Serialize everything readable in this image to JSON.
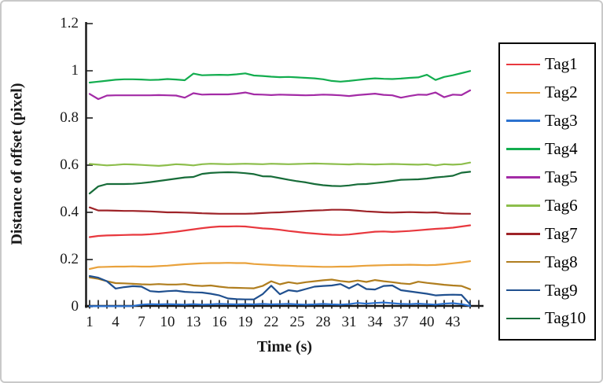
{
  "figure": {
    "background": "#ffffff",
    "frame_border_color": "#c9c9c9",
    "axis_color": "#1a1a1a",
    "text_color": "#1a1a1a",
    "legend_border_color": "#000000"
  },
  "chart_data": {
    "type": "line",
    "title": "",
    "xlabel": "Time (s)",
    "ylabel": "Distance of offset (pixel)",
    "grid": false,
    "legend_position": "right",
    "xlim": [
      0,
      46
    ],
    "ylim": [
      0,
      1.2
    ],
    "x": [
      1,
      2,
      3,
      4,
      5,
      6,
      7,
      8,
      9,
      10,
      11,
      12,
      13,
      14,
      15,
      16,
      17,
      18,
      19,
      20,
      21,
      22,
      23,
      24,
      25,
      26,
      27,
      28,
      29,
      30,
      31,
      32,
      33,
      34,
      35,
      36,
      37,
      38,
      39,
      40,
      41,
      42,
      43,
      44,
      45
    ],
    "x_tick_labels": [
      1,
      4,
      7,
      10,
      13,
      16,
      19,
      22,
      25,
      28,
      31,
      34,
      37,
      40,
      43
    ],
    "y_ticks": [
      0,
      0.2,
      0.4,
      0.6,
      0.8,
      1,
      1.2
    ],
    "y_tick_labels": [
      "0",
      "0.2",
      "0.4",
      "0.6",
      "0.8",
      "1",
      "1.2"
    ],
    "series": [
      {
        "name": "Tag1",
        "color": "#E8383E",
        "values": [
          0.295,
          0.3,
          0.302,
          0.303,
          0.304,
          0.305,
          0.305,
          0.307,
          0.31,
          0.314,
          0.318,
          0.323,
          0.328,
          0.333,
          0.337,
          0.34,
          0.34,
          0.341,
          0.34,
          0.336,
          0.332,
          0.33,
          0.326,
          0.321,
          0.317,
          0.313,
          0.31,
          0.307,
          0.305,
          0.304,
          0.306,
          0.31,
          0.314,
          0.318,
          0.319,
          0.317,
          0.319,
          0.321,
          0.324,
          0.327,
          0.33,
          0.332,
          0.335,
          0.34,
          0.345
        ]
      },
      {
        "name": "Tag2",
        "color": "#E9A23C",
        "values": [
          0.16,
          0.168,
          0.169,
          0.17,
          0.17,
          0.171,
          0.17,
          0.17,
          0.172,
          0.174,
          0.177,
          0.18,
          0.182,
          0.184,
          0.185,
          0.185,
          0.186,
          0.185,
          0.185,
          0.181,
          0.179,
          0.177,
          0.175,
          0.174,
          0.172,
          0.171,
          0.17,
          0.169,
          0.169,
          0.17,
          0.17,
          0.172,
          0.174,
          0.175,
          0.176,
          0.177,
          0.177,
          0.178,
          0.177,
          0.176,
          0.177,
          0.18,
          0.184,
          0.188,
          0.193
        ]
      },
      {
        "name": "Tag3",
        "color": "#2C72CF",
        "values": [
          0.002,
          0.002,
          0.002,
          0.002,
          0.002,
          0.003,
          0.009,
          0.011,
          0.01,
          0.011,
          0.01,
          0.009,
          0.011,
          0.009,
          0.01,
          0.012,
          0.011,
          0.01,
          0.011,
          0.01,
          0.012,
          0.01,
          0.011,
          0.012,
          0.01,
          0.009,
          0.01,
          0.012,
          0.01,
          0.009,
          0.011,
          0.016,
          0.013,
          0.016,
          0.018,
          0.015,
          0.012,
          0.011,
          0.013,
          0.011,
          0.009,
          0.013,
          0.015,
          0.011,
          0.003
        ]
      },
      {
        "name": "Tag4",
        "color": "#13AD4F",
        "values": [
          0.95,
          0.954,
          0.958,
          0.962,
          0.964,
          0.964,
          0.963,
          0.961,
          0.962,
          0.965,
          0.963,
          0.96,
          0.988,
          0.981,
          0.982,
          0.983,
          0.982,
          0.985,
          0.989,
          0.98,
          0.978,
          0.975,
          0.973,
          0.974,
          0.972,
          0.97,
          0.968,
          0.964,
          0.957,
          0.954,
          0.957,
          0.961,
          0.965,
          0.968,
          0.966,
          0.965,
          0.967,
          0.97,
          0.972,
          0.983,
          0.961,
          0.974,
          0.981,
          0.99,
          0.999
        ]
      },
      {
        "name": "Tag5",
        "color": "#A32BA6",
        "values": [
          0.902,
          0.88,
          0.895,
          0.896,
          0.896,
          0.896,
          0.896,
          0.896,
          0.897,
          0.896,
          0.895,
          0.886,
          0.905,
          0.899,
          0.9,
          0.9,
          0.9,
          0.903,
          0.908,
          0.9,
          0.899,
          0.897,
          0.899,
          0.898,
          0.897,
          0.896,
          0.897,
          0.899,
          0.898,
          0.896,
          0.893,
          0.897,
          0.9,
          0.903,
          0.898,
          0.896,
          0.886,
          0.893,
          0.899,
          0.898,
          0.908,
          0.888,
          0.899,
          0.897,
          0.917
        ]
      },
      {
        "name": "Tag6",
        "color": "#8DBE4C",
        "values": [
          0.605,
          0.602,
          0.599,
          0.601,
          0.604,
          0.603,
          0.601,
          0.599,
          0.597,
          0.6,
          0.604,
          0.602,
          0.599,
          0.604,
          0.606,
          0.605,
          0.604,
          0.605,
          0.606,
          0.605,
          0.604,
          0.606,
          0.605,
          0.604,
          0.605,
          0.606,
          0.607,
          0.606,
          0.605,
          0.604,
          0.603,
          0.605,
          0.604,
          0.603,
          0.604,
          0.605,
          0.604,
          0.603,
          0.602,
          0.604,
          0.599,
          0.604,
          0.602,
          0.604,
          0.611
        ]
      },
      {
        "name": "Tag7",
        "color": "#9E2328",
        "values": [
          0.421,
          0.408,
          0.408,
          0.407,
          0.406,
          0.406,
          0.405,
          0.404,
          0.402,
          0.4,
          0.4,
          0.399,
          0.398,
          0.396,
          0.395,
          0.394,
          0.394,
          0.394,
          0.394,
          0.395,
          0.397,
          0.399,
          0.4,
          0.402,
          0.404,
          0.406,
          0.408,
          0.409,
          0.411,
          0.411,
          0.41,
          0.407,
          0.404,
          0.402,
          0.4,
          0.399,
          0.4,
          0.401,
          0.4,
          0.399,
          0.4,
          0.396,
          0.395,
          0.394,
          0.394
        ]
      },
      {
        "name": "Tag8",
        "color": "#B07E1F",
        "values": [
          0.124,
          0.118,
          0.108,
          0.1,
          0.099,
          0.097,
          0.095,
          0.094,
          0.096,
          0.094,
          0.094,
          0.096,
          0.09,
          0.088,
          0.09,
          0.085,
          0.081,
          0.08,
          0.079,
          0.078,
          0.088,
          0.108,
          0.095,
          0.104,
          0.098,
          0.104,
          0.108,
          0.112,
          0.115,
          0.109,
          0.105,
          0.111,
          0.105,
          0.113,
          0.108,
          0.104,
          0.099,
          0.096,
          0.106,
          0.101,
          0.097,
          0.093,
          0.09,
          0.088,
          0.074
        ]
      },
      {
        "name": "Tag9",
        "color": "#20508F",
        "values": [
          0.13,
          0.123,
          0.108,
          0.077,
          0.083,
          0.087,
          0.085,
          0.066,
          0.063,
          0.066,
          0.068,
          0.063,
          0.061,
          0.06,
          0.055,
          0.048,
          0.035,
          0.032,
          0.031,
          0.031,
          0.053,
          0.089,
          0.053,
          0.07,
          0.065,
          0.075,
          0.085,
          0.088,
          0.09,
          0.096,
          0.078,
          0.096,
          0.075,
          0.073,
          0.088,
          0.09,
          0.07,
          0.065,
          0.06,
          0.055,
          0.048,
          0.05,
          0.051,
          0.05,
          0.01
        ]
      },
      {
        "name": "Tag10",
        "color": "#176C39",
        "values": [
          0.48,
          0.51,
          0.52,
          0.52,
          0.52,
          0.521,
          0.524,
          0.528,
          0.533,
          0.538,
          0.543,
          0.548,
          0.55,
          0.563,
          0.567,
          0.569,
          0.57,
          0.569,
          0.566,
          0.562,
          0.553,
          0.552,
          0.545,
          0.538,
          0.532,
          0.527,
          0.52,
          0.515,
          0.512,
          0.511,
          0.514,
          0.519,
          0.52,
          0.524,
          0.528,
          0.533,
          0.538,
          0.539,
          0.54,
          0.543,
          0.548,
          0.551,
          0.555,
          0.568,
          0.572
        ]
      }
    ]
  }
}
